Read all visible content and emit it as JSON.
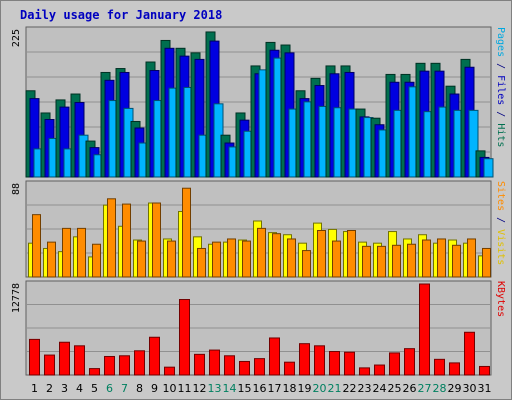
{
  "chart_data": {
    "type": "bar",
    "title": "Daily usage for January 2018",
    "days": [
      "1",
      "2",
      "3",
      "4",
      "5",
      "6",
      "7",
      "8",
      "9",
      "10",
      "11",
      "12",
      "13",
      "14",
      "15",
      "16",
      "17",
      "18",
      "19",
      "20",
      "21",
      "22",
      "23",
      "24",
      "25",
      "26",
      "27",
      "28",
      "29",
      "30",
      "31"
    ],
    "weekend_days": [
      "6",
      "7",
      "13",
      "14",
      "20",
      "21",
      "27",
      "28"
    ],
    "panels": [
      {
        "name": "hits-files-pages",
        "max_label": "225",
        "ylim": [
          0,
          225
        ],
        "series": [
          {
            "name": "Hits",
            "color": "#006f4f",
            "values": [
              132,
              98,
              118,
              127,
              55,
              160,
              166,
              85,
              176,
              209,
              197,
              190,
              222,
              64,
              98,
              170,
              206,
              202,
              132,
              151,
              170,
              170,
              104,
              90,
              157,
              157,
              174,
              174,
              139,
              180,
              40
            ]
          },
          {
            "name": "Files",
            "color": "#0000e0",
            "values": [
              120,
              88,
              107,
              114,
              45,
              148,
              160,
              75,
              163,
              197,
              185,
              180,
              208,
              52,
              87,
              158,
              194,
              190,
              120,
              140,
              158,
              160,
              92,
              80,
              145,
              145,
              162,
              162,
              127,
              168,
              30
            ]
          },
          {
            "name": "Pages",
            "color": "#00b4ff",
            "values": [
              43,
              59,
              43,
              64,
              34,
              117,
              105,
              52,
              117,
              136,
              137,
              64,
              112,
              46,
              70,
              164,
              182,
              104,
              115,
              108,
              106,
              104,
              91,
              72,
              102,
              138,
              100,
              107,
              102,
              102,
              28
            ]
          }
        ],
        "legend": [
          {
            "text": "Pages",
            "color": "#00a8e0"
          },
          {
            "text": " / ",
            "color": "#000080"
          },
          {
            "text": "Files",
            "color": "#0000c0"
          },
          {
            "text": " / ",
            "color": "#000080"
          },
          {
            "text": "Hits",
            "color": "#007050"
          }
        ]
      },
      {
        "name": "visits-sites",
        "max_label": "88",
        "ylim": [
          0,
          88
        ],
        "series": [
          {
            "name": "Visits",
            "color": "#ffff00",
            "values": [
              32,
              27,
              24,
              38,
              19,
              68,
              48,
              35,
              70,
              36,
              62,
              38,
              31,
              33,
              35,
              53,
              42,
              40,
              32,
              51,
              45,
              43,
              33,
              32,
              43,
              36,
              40,
              32,
              35,
              32,
              20
            ]
          },
          {
            "name": "Sites",
            "color": "#ff8c00",
            "values": [
              59,
              33,
              46,
              46,
              31,
              74,
              69,
              34,
              70,
              34,
              84,
              27,
              33,
              36,
              34,
              46,
              41,
              36,
              25,
              44,
              34,
              44,
              29,
              29,
              30,
              31,
              35,
              36,
              30,
              36,
              27
            ]
          }
        ],
        "legend": [
          {
            "text": "Sites",
            "color": "#ff8c00"
          },
          {
            "text": " / ",
            "color": "#000080"
          },
          {
            "text": "Visits",
            "color": "#e0c000"
          }
        ]
      },
      {
        "name": "kbytes",
        "max_label": "12778",
        "ylim": [
          0,
          12778
        ],
        "series": [
          {
            "name": "KBytes",
            "color": "#ff0000",
            "values": [
              5000,
              2800,
              4600,
              4100,
              900,
              2600,
              2700,
              3400,
              5300,
              1100,
              10600,
              2900,
              3500,
              2700,
              1900,
              2300,
              5200,
              1800,
              4400,
              4100,
              3300,
              3200,
              1000,
              1400,
              3100,
              3700,
              12778,
              2200,
              1700,
              6000,
              1200
            ]
          }
        ],
        "legend": [
          {
            "text": "KBytes",
            "color": "#e00000"
          }
        ]
      }
    ]
  }
}
